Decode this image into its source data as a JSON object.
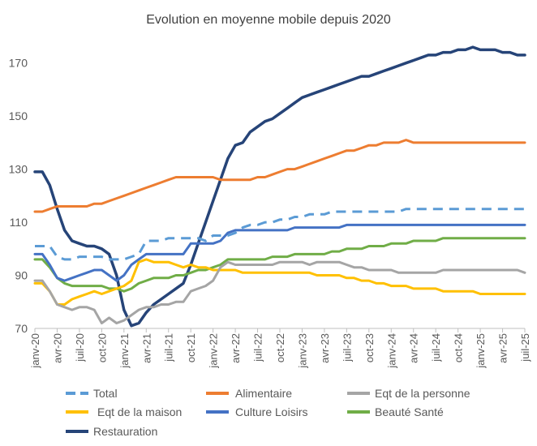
{
  "chart_data": {
    "type": "line",
    "title": "Evolution en moyenne mobile depuis 2020",
    "xlabel": "",
    "ylabel": "",
    "ylim": [
      70,
      180
    ],
    "yticks": [
      70,
      90,
      110,
      130,
      150,
      170
    ],
    "grid": false,
    "legend_position": "bottom",
    "x_tick_labels": [
      "janv-20",
      "avr-20",
      "juil-20",
      "oct-20",
      "janv-21",
      "avr-21",
      "juil-21",
      "oct-21",
      "janv-22",
      "avr-22",
      "juil-22",
      "oct-22",
      "janv-23",
      "avr-23",
      "juil-23",
      "oct-23",
      "janv-24",
      "avr-24",
      "juil-24",
      "oct-24",
      "janv-25",
      "avr-25",
      "juil-25"
    ],
    "series": [
      {
        "name": "Total",
        "color": "#5B9BD5",
        "dashed": true,
        "values": [
          101,
          101,
          101,
          97,
          96,
          96,
          97,
          97,
          97,
          97,
          96,
          96,
          96,
          97,
          98,
          103,
          103,
          103,
          104,
          104,
          104,
          104,
          104,
          103,
          105,
          105,
          105,
          106,
          108,
          109,
          109,
          110,
          110,
          111,
          111,
          112,
          112,
          113,
          113,
          113,
          114,
          114,
          114,
          114,
          114,
          114,
          114,
          114,
          114,
          114,
          115,
          115,
          115,
          115,
          115,
          115,
          115,
          115,
          115,
          115,
          115,
          115,
          115,
          115,
          115,
          115,
          115
        ]
      },
      {
        "name": "Alimentaire",
        "color": "#ED7D31",
        "dashed": false,
        "values": [
          114,
          114,
          115,
          116,
          116,
          116,
          116,
          116,
          117,
          117,
          118,
          119,
          120,
          121,
          122,
          123,
          124,
          125,
          126,
          127,
          127,
          127,
          127,
          127,
          127,
          126,
          126,
          126,
          126,
          126,
          127,
          127,
          128,
          129,
          130,
          130,
          131,
          132,
          133,
          134,
          135,
          136,
          137,
          137,
          138,
          139,
          139,
          140,
          140,
          140,
          141,
          140,
          140,
          140,
          140,
          140,
          140,
          140,
          140,
          140,
          140,
          140,
          140,
          140,
          140,
          140,
          140
        ]
      },
      {
        "name": "Eqt de la personne",
        "color": "#A5A5A5",
        "dashed": false,
        "values": [
          88,
          88,
          84,
          79,
          78,
          77,
          78,
          78,
          77,
          72,
          74,
          72,
          73,
          75,
          77,
          78,
          78,
          79,
          79,
          80,
          80,
          84,
          85,
          86,
          88,
          93,
          95,
          94,
          94,
          94,
          94,
          94,
          94,
          95,
          95,
          95,
          95,
          94,
          95,
          95,
          95,
          95,
          94,
          93,
          93,
          92,
          92,
          92,
          92,
          91,
          91,
          91,
          91,
          91,
          91,
          92,
          92,
          92,
          92,
          92,
          92,
          92,
          92,
          92,
          92,
          92,
          91
        ]
      },
      {
        "name": "Eqt de la maison",
        "color": "#FFC000",
        "dashed": false,
        "values": [
          87,
          87,
          84,
          79,
          79,
          81,
          82,
          83,
          84,
          83,
          84,
          85,
          86,
          88,
          95,
          96,
          95,
          95,
          95,
          94,
          93,
          94,
          93,
          93,
          92,
          92,
          92,
          92,
          91,
          91,
          91,
          91,
          91,
          91,
          91,
          91,
          91,
          91,
          90,
          90,
          90,
          90,
          89,
          89,
          88,
          88,
          87,
          87,
          86,
          86,
          86,
          85,
          85,
          85,
          85,
          84,
          84,
          84,
          84,
          84,
          83,
          83,
          83,
          83,
          83,
          83,
          83
        ]
      },
      {
        "name": "Culture Loisirs",
        "color": "#4472C4",
        "dashed": false,
        "values": [
          98,
          98,
          94,
          89,
          88,
          89,
          90,
          91,
          92,
          92,
          90,
          88,
          90,
          94,
          96,
          98,
          98,
          98,
          98,
          98,
          98,
          102,
          102,
          102,
          102,
          103,
          106,
          107,
          107,
          107,
          107,
          107,
          107,
          107,
          107,
          108,
          108,
          108,
          108,
          108,
          108,
          108,
          109,
          109,
          109,
          109,
          109,
          109,
          109,
          109,
          109,
          109,
          109,
          109,
          109,
          109,
          109,
          109,
          109,
          109,
          109,
          109,
          109,
          109,
          109,
          109,
          109
        ]
      },
      {
        "name": "Beauté Santé",
        "color": "#70AD47",
        "dashed": false,
        "values": [
          96,
          96,
          93,
          89,
          87,
          86,
          86,
          86,
          86,
          86,
          85,
          85,
          84,
          85,
          87,
          88,
          89,
          89,
          89,
          90,
          90,
          91,
          92,
          92,
          93,
          94,
          96,
          96,
          96,
          96,
          96,
          96,
          97,
          97,
          97,
          98,
          98,
          98,
          98,
          98,
          99,
          99,
          100,
          100,
          100,
          101,
          101,
          101,
          102,
          102,
          102,
          103,
          103,
          103,
          103,
          104,
          104,
          104,
          104,
          104,
          104,
          104,
          104,
          104,
          104,
          104,
          104
        ]
      },
      {
        "name": "Restauration",
        "color": "#264478",
        "dashed": false,
        "values": [
          129,
          129,
          124,
          115,
          107,
          103,
          102,
          101,
          101,
          100,
          98,
          90,
          77,
          71,
          72,
          76,
          79,
          81,
          83,
          85,
          87,
          94,
          102,
          110,
          118,
          126,
          134,
          139,
          140,
          144,
          146,
          148,
          149,
          151,
          153,
          155,
          157,
          158,
          159,
          160,
          161,
          162,
          163,
          164,
          165,
          165,
          166,
          167,
          168,
          169,
          170,
          171,
          172,
          173,
          173,
          174,
          174,
          175,
          175,
          176,
          175,
          175,
          175,
          174,
          174,
          173,
          173
        ]
      }
    ]
  }
}
